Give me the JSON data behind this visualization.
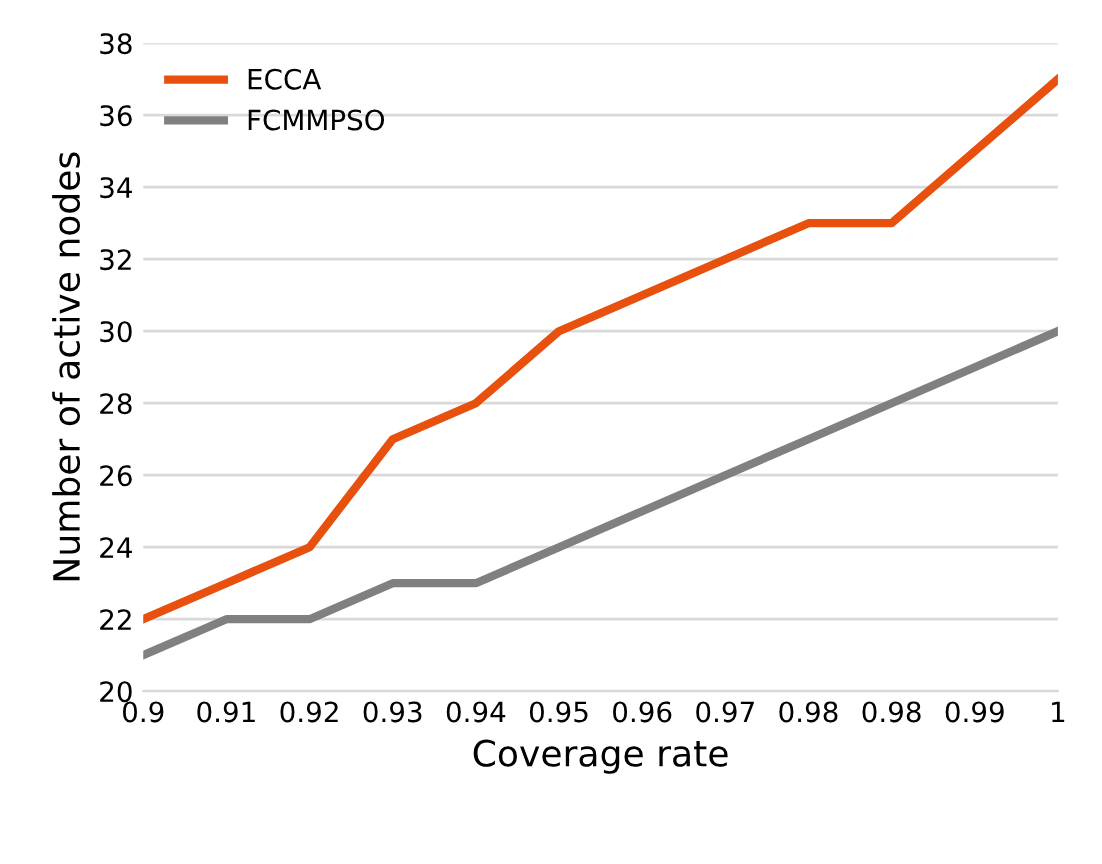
{
  "chart_data": {
    "type": "line",
    "xlabel": "Coverage rate",
    "ylabel": "Number of active nodes",
    "categories": [
      "0.9",
      "0.91",
      "0.92",
      "0.93",
      "0.94",
      "0.95",
      "0.96",
      "0.97",
      "0.98",
      "0.98",
      "0.99",
      "1"
    ],
    "series": [
      {
        "name": "ECCA",
        "color": "#e8500e",
        "values": [
          22,
          23,
          24,
          27,
          28,
          30,
          31,
          32,
          33,
          33,
          35,
          37
        ]
      },
      {
        "name": "FCMMPSO",
        "color": "#808080",
        "values": [
          21,
          22,
          22,
          23,
          23,
          24,
          25,
          26,
          27,
          28,
          29,
          30
        ]
      }
    ],
    "ylim": [
      20,
      38
    ],
    "yticks": [
      20,
      22,
      24,
      26,
      28,
      30,
      32,
      34,
      36,
      38
    ],
    "grid": "y",
    "legend": "top left",
    "marker": "none",
    "line_style": "solid"
  }
}
